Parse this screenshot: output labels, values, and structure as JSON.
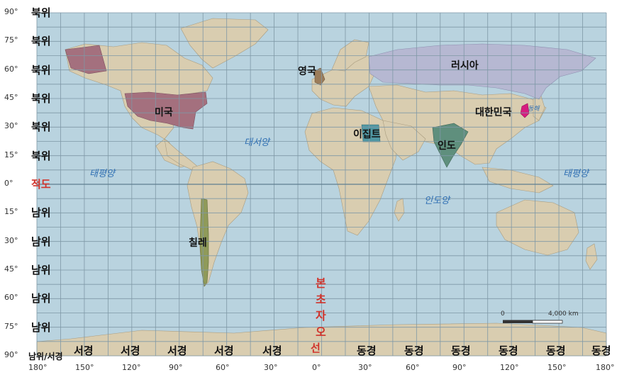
{
  "colors": {
    "ocean": "#b9d3df",
    "land": "#d9cdb0",
    "grid": "#7f98a6",
    "usa": "#a4707e",
    "russia": "#b6b8d2",
    "uk": "#9b7c5a",
    "egypt": "#4f97a3",
    "india": "#5f8f7d",
    "korea": "#d61c7f",
    "chile": "#8f9a5a",
    "ocean_label": "#2f6fb3",
    "equator_label": "#d0342c"
  },
  "latitude_labels": [
    {
      "deg": "90°",
      "word": "북위"
    },
    {
      "deg": "75°",
      "word": "북위"
    },
    {
      "deg": "60°",
      "word": "북위"
    },
    {
      "deg": "45°",
      "word": "북위"
    },
    {
      "deg": "30°",
      "word": "북위"
    },
    {
      "deg": "15°",
      "word": "북위"
    },
    {
      "deg": "0°",
      "word": "적도"
    },
    {
      "deg": "15°",
      "word": "남위"
    },
    {
      "deg": "30°",
      "word": "남위"
    },
    {
      "deg": "45°",
      "word": "남위"
    },
    {
      "deg": "60°",
      "word": "남위"
    },
    {
      "deg": "75°",
      "word": "남위"
    },
    {
      "deg": "90°",
      "word": "남위/서경"
    }
  ],
  "longitude_labels": [
    {
      "deg": "180°",
      "word": ""
    },
    {
      "deg": "150°",
      "word": "서경"
    },
    {
      "deg": "120°",
      "word": "서경"
    },
    {
      "deg": "90°",
      "word": "서경"
    },
    {
      "deg": "60°",
      "word": "서경"
    },
    {
      "deg": "30°",
      "word": "서경"
    },
    {
      "deg": "0°",
      "word": "선"
    },
    {
      "deg": "30°",
      "word": "동경"
    },
    {
      "deg": "60°",
      "word": "동경"
    },
    {
      "deg": "90°",
      "word": "동경"
    },
    {
      "deg": "120°",
      "word": "동경"
    },
    {
      "deg": "150°",
      "word": "동경"
    },
    {
      "deg": "180°",
      "word": "동경"
    }
  ],
  "prime_meridian_chars": [
    "본",
    "초",
    "자",
    "오"
  ],
  "countries": {
    "usa": "미국",
    "russia": "러시아",
    "uk": "영국",
    "egypt": "이집트",
    "india": "인도",
    "korea": "대한민국",
    "korea_sea": "동해",
    "chile": "칠레"
  },
  "oceans": {
    "pacific_west": "태평양",
    "atlantic": "대서양",
    "indian": "인도양",
    "pacific_east": "태평양"
  },
  "scale_bar": {
    "start": "0",
    "end": "4,000 km"
  }
}
